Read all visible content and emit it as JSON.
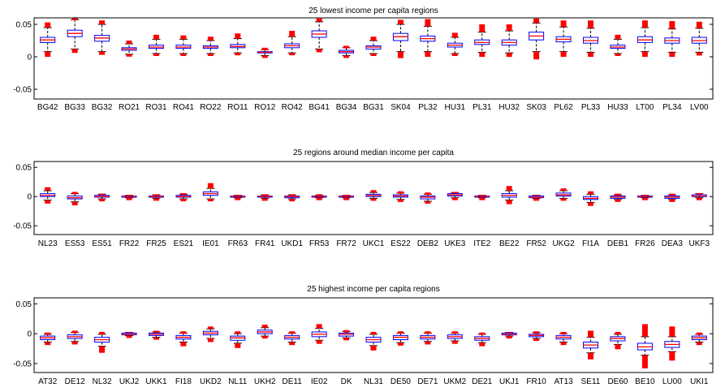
{
  "figure": {
    "background": "#ffffff",
    "box_color": "#0000ff",
    "median_color": "#ff0000",
    "outlier_color": "#ff0000",
    "whisker_color": "#000000"
  },
  "chart_data": [
    {
      "type": "box",
      "title": "25 lowest income per capita regions",
      "ylim": [
        -0.065,
        0.06
      ],
      "yticks": [
        0.05,
        0,
        -0.05
      ],
      "ytick_labels": [
        "0.05",
        "0",
        "-0.05"
      ],
      "categories": [
        "BG42",
        "BG33",
        "BG32",
        "RO21",
        "RO31",
        "RO41",
        "RO22",
        "RO11",
        "RO12",
        "RO42",
        "BG41",
        "BG34",
        "BG31",
        "SK04",
        "PL32",
        "HU31",
        "PL31",
        "HU32",
        "SK03",
        "PL62",
        "PL33",
        "HU33",
        "LT00",
        "PL34",
        "LV00"
      ],
      "boxes": [
        {
          "q1": 0.022,
          "median": 0.026,
          "q3": 0.03,
          "wlo": 0.008,
          "whi": 0.045,
          "olo": 0.0,
          "ohi": 0.053
        },
        {
          "q1": 0.031,
          "median": 0.036,
          "q3": 0.041,
          "wlo": 0.012,
          "whi": 0.057,
          "olo": 0.006,
          "ohi": 0.06
        },
        {
          "q1": 0.024,
          "median": 0.029,
          "q3": 0.033,
          "wlo": 0.008,
          "whi": 0.05,
          "olo": 0.003,
          "ohi": 0.056
        },
        {
          "q1": 0.01,
          "median": 0.012,
          "q3": 0.014,
          "wlo": 0.004,
          "whi": 0.02,
          "olo": 0.002,
          "ohi": 0.025
        },
        {
          "q1": 0.013,
          "median": 0.015,
          "q3": 0.018,
          "wlo": 0.005,
          "whi": 0.027,
          "olo": 0.002,
          "ohi": 0.034
        },
        {
          "q1": 0.013,
          "median": 0.015,
          "q3": 0.018,
          "wlo": 0.005,
          "whi": 0.027,
          "olo": 0.002,
          "ohi": 0.033
        },
        {
          "q1": 0.013,
          "median": 0.015,
          "q3": 0.017,
          "wlo": 0.005,
          "whi": 0.025,
          "olo": 0.003,
          "ohi": 0.031
        },
        {
          "q1": 0.014,
          "median": 0.016,
          "q3": 0.019,
          "wlo": 0.006,
          "whi": 0.028,
          "olo": 0.004,
          "ohi": 0.036
        },
        {
          "q1": 0.006,
          "median": 0.007,
          "q3": 0.008,
          "wlo": 0.002,
          "whi": 0.011,
          "olo": 0.001,
          "ohi": 0.014
        },
        {
          "q1": 0.014,
          "median": 0.017,
          "q3": 0.02,
          "wlo": 0.006,
          "whi": 0.031,
          "olo": 0.003,
          "ohi": 0.04
        },
        {
          "q1": 0.03,
          "median": 0.035,
          "q3": 0.04,
          "wlo": 0.012,
          "whi": 0.054,
          "olo": 0.007,
          "ohi": 0.059
        },
        {
          "q1": 0.006,
          "median": 0.008,
          "q3": 0.01,
          "wlo": 0.002,
          "whi": 0.014,
          "olo": 0.001,
          "ohi": 0.017
        },
        {
          "q1": 0.012,
          "median": 0.015,
          "q3": 0.017,
          "wlo": 0.005,
          "whi": 0.025,
          "olo": 0.002,
          "ohi": 0.031
        },
        {
          "q1": 0.025,
          "median": 0.031,
          "q3": 0.036,
          "wlo": 0.008,
          "whi": 0.05,
          "olo": -0.002,
          "ohi": 0.057
        },
        {
          "q1": 0.024,
          "median": 0.028,
          "q3": 0.032,
          "wlo": 0.008,
          "whi": 0.047,
          "olo": 0.0,
          "ohi": 0.058
        },
        {
          "q1": 0.015,
          "median": 0.018,
          "q3": 0.021,
          "wlo": 0.005,
          "whi": 0.03,
          "olo": 0.002,
          "ohi": 0.037
        },
        {
          "q1": 0.019,
          "median": 0.022,
          "q3": 0.026,
          "wlo": 0.007,
          "whi": 0.038,
          "olo": 0.0,
          "ohi": 0.05
        },
        {
          "q1": 0.018,
          "median": 0.022,
          "q3": 0.026,
          "wlo": 0.006,
          "whi": 0.04,
          "olo": 0.0,
          "ohi": 0.05
        },
        {
          "q1": 0.026,
          "median": 0.032,
          "q3": 0.038,
          "wlo": 0.008,
          "whi": 0.052,
          "olo": -0.004,
          "ohi": 0.059
        },
        {
          "q1": 0.023,
          "median": 0.027,
          "q3": 0.031,
          "wlo": 0.008,
          "whi": 0.046,
          "olo": 0.0,
          "ohi": 0.056
        },
        {
          "q1": 0.021,
          "median": 0.025,
          "q3": 0.03,
          "wlo": 0.007,
          "whi": 0.044,
          "olo": 0.0,
          "ohi": 0.056
        },
        {
          "q1": 0.013,
          "median": 0.015,
          "q3": 0.018,
          "wlo": 0.005,
          "whi": 0.027,
          "olo": 0.002,
          "ohi": 0.034
        },
        {
          "q1": 0.022,
          "median": 0.026,
          "q3": 0.031,
          "wlo": 0.008,
          "whi": 0.045,
          "olo": 0.0,
          "ohi": 0.056
        },
        {
          "q1": 0.021,
          "median": 0.025,
          "q3": 0.029,
          "wlo": 0.007,
          "whi": 0.043,
          "olo": 0.0,
          "ohi": 0.055
        },
        {
          "q1": 0.021,
          "median": 0.025,
          "q3": 0.03,
          "wlo": 0.007,
          "whi": 0.044,
          "olo": 0.002,
          "ohi": 0.054
        }
      ]
    },
    {
      "type": "box",
      "title": "25 regions around median income per capita",
      "ylim": [
        -0.065,
        0.06
      ],
      "yticks": [
        0.05,
        0,
        -0.05
      ],
      "ytick_labels": [
        "0.05",
        "0",
        "-0.05"
      ],
      "categories": [
        "NL23",
        "ES53",
        "ES51",
        "FR22",
        "FR25",
        "ES21",
        "IE01",
        "FR63",
        "FR41",
        "UKD1",
        "FR53",
        "FR72",
        "UKC1",
        "ES22",
        "DEB2",
        "UKE3",
        "ITE2",
        "BE22",
        "FR52",
        "UKG2",
        "FI1A",
        "DEB1",
        "FR26",
        "DEA3",
        "UKF3"
      ],
      "boxes": [
        {
          "q1": 0.0,
          "median": 0.002,
          "q3": 0.005,
          "wlo": -0.006,
          "whi": 0.01,
          "olo": -0.012,
          "ohi": 0.016
        },
        {
          "q1": -0.004,
          "median": -0.002,
          "q3": 0.001,
          "wlo": -0.009,
          "whi": 0.005,
          "olo": -0.015,
          "ohi": 0.008
        },
        {
          "q1": -0.001,
          "median": 0.0,
          "q3": 0.002,
          "wlo": -0.004,
          "whi": 0.004,
          "olo": -0.006,
          "ohi": 0.005
        },
        {
          "q1": -0.001,
          "median": 0.0,
          "q3": 0.001,
          "wlo": -0.002,
          "whi": 0.002,
          "olo": -0.003,
          "ohi": 0.003
        },
        {
          "q1": -0.001,
          "median": 0.0,
          "q3": 0.001,
          "wlo": -0.003,
          "whi": 0.003,
          "olo": -0.004,
          "ohi": 0.004
        },
        {
          "q1": -0.001,
          "median": 0.0,
          "q3": 0.002,
          "wlo": -0.004,
          "whi": 0.004,
          "olo": -0.007,
          "ohi": 0.006
        },
        {
          "q1": 0.002,
          "median": 0.005,
          "q3": 0.008,
          "wlo": -0.004,
          "whi": 0.014,
          "olo": -0.008,
          "ohi": 0.023
        },
        {
          "q1": -0.001,
          "median": 0.0,
          "q3": 0.001,
          "wlo": -0.002,
          "whi": 0.002,
          "olo": -0.003,
          "ohi": 0.003
        },
        {
          "q1": -0.001,
          "median": 0.0,
          "q3": 0.001,
          "wlo": -0.003,
          "whi": 0.003,
          "olo": -0.004,
          "ohi": 0.004
        },
        {
          "q1": -0.002,
          "median": 0.0,
          "q3": 0.001,
          "wlo": -0.004,
          "whi": 0.003,
          "olo": -0.006,
          "ohi": 0.004
        },
        {
          "q1": -0.001,
          "median": 0.0,
          "q3": 0.001,
          "wlo": -0.002,
          "whi": 0.002,
          "olo": -0.003,
          "ohi": 0.004
        },
        {
          "q1": -0.001,
          "median": 0.0,
          "q3": 0.001,
          "wlo": -0.002,
          "whi": 0.002,
          "olo": -0.003,
          "ohi": 0.003
        },
        {
          "q1": 0.0,
          "median": 0.002,
          "q3": 0.004,
          "wlo": -0.003,
          "whi": 0.007,
          "olo": -0.005,
          "ohi": 0.011
        },
        {
          "q1": -0.001,
          "median": 0.001,
          "q3": 0.003,
          "wlo": -0.005,
          "whi": 0.006,
          "olo": -0.009,
          "ohi": 0.009
        },
        {
          "q1": -0.004,
          "median": -0.001,
          "q3": 0.001,
          "wlo": -0.008,
          "whi": 0.004,
          "olo": -0.012,
          "ohi": 0.007
        },
        {
          "q1": 0.001,
          "median": 0.003,
          "q3": 0.005,
          "wlo": -0.002,
          "whi": 0.007,
          "olo": -0.004,
          "ohi": 0.008
        },
        {
          "q1": -0.001,
          "median": 0.0,
          "q3": 0.001,
          "wlo": -0.002,
          "whi": 0.002,
          "olo": -0.003,
          "ohi": 0.003
        },
        {
          "q1": -0.001,
          "median": 0.002,
          "q3": 0.005,
          "wlo": -0.006,
          "whi": 0.01,
          "olo": -0.013,
          "ohi": 0.018
        },
        {
          "q1": -0.002,
          "median": -0.001,
          "q3": 0.001,
          "wlo": -0.003,
          "whi": 0.002,
          "olo": -0.005,
          "ohi": 0.003
        },
        {
          "q1": 0.001,
          "median": 0.003,
          "q3": 0.006,
          "wlo": -0.003,
          "whi": 0.01,
          "olo": -0.006,
          "ohi": 0.014
        },
        {
          "q1": -0.005,
          "median": -0.003,
          "q3": 0.0,
          "wlo": -0.01,
          "whi": 0.004,
          "olo": -0.016,
          "ohi": 0.009
        },
        {
          "q1": -0.003,
          "median": -0.001,
          "q3": 0.001,
          "wlo": -0.005,
          "whi": 0.003,
          "olo": -0.008,
          "ohi": 0.005
        },
        {
          "q1": -0.001,
          "median": 0.0,
          "q3": 0.001,
          "wlo": -0.002,
          "whi": 0.002,
          "olo": -0.003,
          "ohi": 0.003
        },
        {
          "q1": -0.003,
          "median": -0.001,
          "q3": 0.001,
          "wlo": -0.005,
          "whi": 0.003,
          "olo": -0.007,
          "ohi": 0.005
        },
        {
          "q1": 0.0,
          "median": 0.001,
          "q3": 0.003,
          "wlo": -0.002,
          "whi": 0.005,
          "olo": -0.004,
          "ohi": 0.006
        }
      ]
    },
    {
      "type": "box",
      "title": "25 highest income per capita regions",
      "ylim": [
        -0.065,
        0.06
      ],
      "yticks": [
        0.05,
        0,
        -0.05
      ],
      "ytick_labels": [
        "0.05",
        "0",
        "-0.05"
      ],
      "categories": [
        "AT32",
        "DE12",
        "NL32",
        "UKJ2",
        "UKK1",
        "FI18",
        "UKD2",
        "NL11",
        "UKH2",
        "DE11",
        "IE02",
        "DK",
        "NL31",
        "DE50",
        "DE71",
        "UKM2",
        "DE21",
        "UKJ1",
        "FR10",
        "AT13",
        "SE11",
        "DE60",
        "BE10",
        "LU00",
        "UKI1"
      ],
      "boxes": [
        {
          "q1": -0.01,
          "median": -0.007,
          "q3": -0.004,
          "wlo": -0.014,
          "whi": -0.001,
          "olo": -0.019,
          "ohi": 0.002
        },
        {
          "q1": -0.008,
          "median": -0.005,
          "q3": -0.002,
          "wlo": -0.013,
          "whi": 0.002,
          "olo": -0.018,
          "ohi": 0.005
        },
        {
          "q1": -0.014,
          "median": -0.01,
          "q3": -0.006,
          "wlo": -0.021,
          "whi": -0.001,
          "olo": -0.032,
          "ohi": 0.003
        },
        {
          "q1": -0.002,
          "median": -0.001,
          "q3": 0.001,
          "wlo": -0.003,
          "whi": 0.002,
          "olo": -0.004,
          "ohi": 0.003
        },
        {
          "q1": -0.003,
          "median": -0.001,
          "q3": 0.001,
          "wlo": -0.006,
          "whi": 0.003,
          "olo": -0.009,
          "ohi": 0.005
        },
        {
          "q1": -0.009,
          "median": -0.006,
          "q3": -0.003,
          "wlo": -0.014,
          "whi": 0.001,
          "olo": -0.021,
          "ohi": 0.004
        },
        {
          "q1": -0.002,
          "median": 0.001,
          "q3": 0.004,
          "wlo": -0.008,
          "whi": 0.008,
          "olo": -0.014,
          "ohi": 0.012
        },
        {
          "q1": -0.011,
          "median": -0.007,
          "q3": -0.004,
          "wlo": -0.016,
          "whi": 0.0,
          "olo": -0.024,
          "ohi": 0.004
        },
        {
          "q1": 0.0,
          "median": 0.003,
          "q3": 0.006,
          "wlo": -0.004,
          "whi": 0.01,
          "olo": -0.008,
          "ohi": 0.015
        },
        {
          "q1": -0.009,
          "median": -0.006,
          "q3": -0.003,
          "wlo": -0.014,
          "whi": 0.001,
          "olo": -0.019,
          "ohi": 0.004
        },
        {
          "q1": -0.005,
          "median": -0.001,
          "q3": 0.003,
          "wlo": -0.011,
          "whi": 0.009,
          "olo": -0.017,
          "ohi": 0.016
        },
        {
          "q1": -0.004,
          "median": -0.001,
          "q3": 0.001,
          "wlo": -0.007,
          "whi": 0.004,
          "olo": -0.01,
          "ohi": 0.006
        },
        {
          "q1": -0.014,
          "median": -0.01,
          "q3": -0.006,
          "wlo": -0.02,
          "whi": -0.001,
          "olo": -0.028,
          "ohi": 0.003
        },
        {
          "q1": -0.01,
          "median": -0.006,
          "q3": -0.003,
          "wlo": -0.015,
          "whi": 0.001,
          "olo": -0.02,
          "ohi": 0.004
        },
        {
          "q1": -0.009,
          "median": -0.006,
          "q3": -0.003,
          "wlo": -0.013,
          "whi": 0.001,
          "olo": -0.018,
          "ohi": 0.004
        },
        {
          "q1": -0.008,
          "median": -0.005,
          "q3": -0.002,
          "wlo": -0.012,
          "whi": 0.001,
          "olo": -0.017,
          "ohi": 0.004
        },
        {
          "q1": -0.011,
          "median": -0.008,
          "q3": -0.005,
          "wlo": -0.015,
          "whi": -0.001,
          "olo": -0.021,
          "ohi": 0.002
        },
        {
          "q1": -0.002,
          "median": -0.001,
          "q3": 0.001,
          "wlo": -0.004,
          "whi": 0.002,
          "olo": -0.006,
          "ohi": 0.003
        },
        {
          "q1": -0.005,
          "median": -0.003,
          "q3": -0.001,
          "wlo": -0.008,
          "whi": 0.002,
          "olo": -0.012,
          "ohi": 0.004
        },
        {
          "q1": -0.009,
          "median": -0.006,
          "q3": -0.003,
          "wlo": -0.014,
          "whi": 0.0,
          "olo": -0.019,
          "ohi": 0.003
        },
        {
          "q1": -0.024,
          "median": -0.019,
          "q3": -0.014,
          "wlo": -0.032,
          "whi": -0.006,
          "olo": -0.043,
          "ohi": 0.005
        },
        {
          "q1": -0.012,
          "median": -0.008,
          "q3": -0.005,
          "wlo": -0.018,
          "whi": -0.001,
          "olo": -0.026,
          "ohi": 0.003
        },
        {
          "q1": -0.027,
          "median": -0.022,
          "q3": -0.016,
          "wlo": -0.036,
          "whi": -0.005,
          "olo": -0.058,
          "ohi": 0.016
        },
        {
          "q1": -0.023,
          "median": -0.018,
          "q3": -0.013,
          "wlo": -0.03,
          "whi": -0.005,
          "olo": -0.045,
          "ohi": 0.012
        },
        {
          "q1": -0.01,
          "median": -0.007,
          "q3": -0.004,
          "wlo": -0.014,
          "whi": -0.001,
          "olo": -0.019,
          "ohi": 0.002
        }
      ]
    }
  ]
}
